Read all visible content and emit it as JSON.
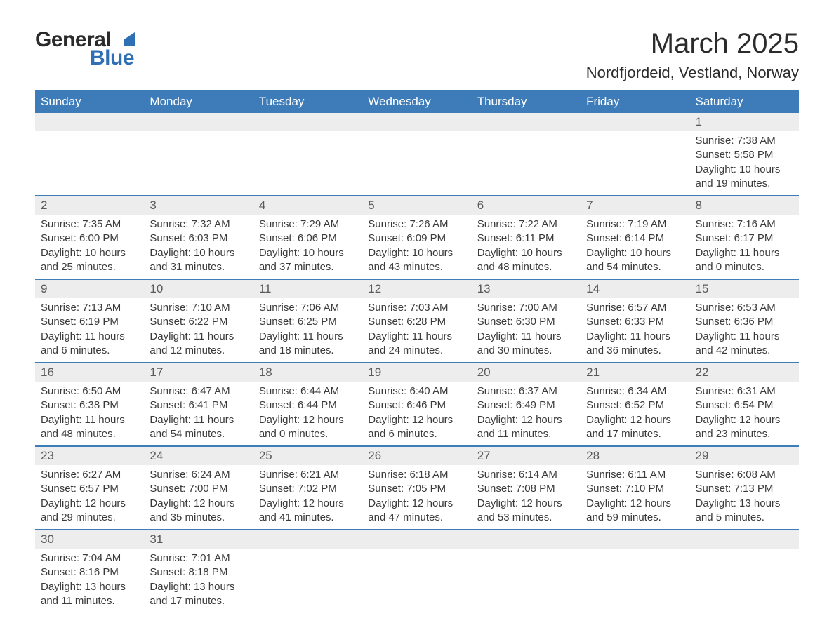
{
  "logo": {
    "text1": "General",
    "text2": "Blue",
    "shape_color": "#2f6fb3"
  },
  "title": "March 2025",
  "location": "Nordfjordeid, Vestland, Norway",
  "header_bg": "#3d7cb9",
  "header_text_color": "#ffffff",
  "daynum_bg": "#ededed",
  "row_divider_color": "#3d7cb9",
  "text_color": "#3a3a3a",
  "font_family": "Arial, Helvetica, sans-serif",
  "title_fontsize": 40,
  "location_fontsize": 22,
  "header_fontsize": 17,
  "daynum_fontsize": 17,
  "data_fontsize": 15,
  "weekdays": [
    "Sunday",
    "Monday",
    "Tuesday",
    "Wednesday",
    "Thursday",
    "Friday",
    "Saturday"
  ],
  "weeks": [
    [
      {
        "day": "",
        "lines": [
          "",
          "",
          "",
          ""
        ]
      },
      {
        "day": "",
        "lines": [
          "",
          "",
          "",
          ""
        ]
      },
      {
        "day": "",
        "lines": [
          "",
          "",
          "",
          ""
        ]
      },
      {
        "day": "",
        "lines": [
          "",
          "",
          "",
          ""
        ]
      },
      {
        "day": "",
        "lines": [
          "",
          "",
          "",
          ""
        ]
      },
      {
        "day": "",
        "lines": [
          "",
          "",
          "",
          ""
        ]
      },
      {
        "day": "1",
        "lines": [
          "Sunrise: 7:38 AM",
          "Sunset: 5:58 PM",
          "Daylight: 10 hours",
          "and 19 minutes."
        ]
      }
    ],
    [
      {
        "day": "2",
        "lines": [
          "Sunrise: 7:35 AM",
          "Sunset: 6:00 PM",
          "Daylight: 10 hours",
          "and 25 minutes."
        ]
      },
      {
        "day": "3",
        "lines": [
          "Sunrise: 7:32 AM",
          "Sunset: 6:03 PM",
          "Daylight: 10 hours",
          "and 31 minutes."
        ]
      },
      {
        "day": "4",
        "lines": [
          "Sunrise: 7:29 AM",
          "Sunset: 6:06 PM",
          "Daylight: 10 hours",
          "and 37 minutes."
        ]
      },
      {
        "day": "5",
        "lines": [
          "Sunrise: 7:26 AM",
          "Sunset: 6:09 PM",
          "Daylight: 10 hours",
          "and 43 minutes."
        ]
      },
      {
        "day": "6",
        "lines": [
          "Sunrise: 7:22 AM",
          "Sunset: 6:11 PM",
          "Daylight: 10 hours",
          "and 48 minutes."
        ]
      },
      {
        "day": "7",
        "lines": [
          "Sunrise: 7:19 AM",
          "Sunset: 6:14 PM",
          "Daylight: 10 hours",
          "and 54 minutes."
        ]
      },
      {
        "day": "8",
        "lines": [
          "Sunrise: 7:16 AM",
          "Sunset: 6:17 PM",
          "Daylight: 11 hours",
          "and 0 minutes."
        ]
      }
    ],
    [
      {
        "day": "9",
        "lines": [
          "Sunrise: 7:13 AM",
          "Sunset: 6:19 PM",
          "Daylight: 11 hours",
          "and 6 minutes."
        ]
      },
      {
        "day": "10",
        "lines": [
          "Sunrise: 7:10 AM",
          "Sunset: 6:22 PM",
          "Daylight: 11 hours",
          "and 12 minutes."
        ]
      },
      {
        "day": "11",
        "lines": [
          "Sunrise: 7:06 AM",
          "Sunset: 6:25 PM",
          "Daylight: 11 hours",
          "and 18 minutes."
        ]
      },
      {
        "day": "12",
        "lines": [
          "Sunrise: 7:03 AM",
          "Sunset: 6:28 PM",
          "Daylight: 11 hours",
          "and 24 minutes."
        ]
      },
      {
        "day": "13",
        "lines": [
          "Sunrise: 7:00 AM",
          "Sunset: 6:30 PM",
          "Daylight: 11 hours",
          "and 30 minutes."
        ]
      },
      {
        "day": "14",
        "lines": [
          "Sunrise: 6:57 AM",
          "Sunset: 6:33 PM",
          "Daylight: 11 hours",
          "and 36 minutes."
        ]
      },
      {
        "day": "15",
        "lines": [
          "Sunrise: 6:53 AM",
          "Sunset: 6:36 PM",
          "Daylight: 11 hours",
          "and 42 minutes."
        ]
      }
    ],
    [
      {
        "day": "16",
        "lines": [
          "Sunrise: 6:50 AM",
          "Sunset: 6:38 PM",
          "Daylight: 11 hours",
          "and 48 minutes."
        ]
      },
      {
        "day": "17",
        "lines": [
          "Sunrise: 6:47 AM",
          "Sunset: 6:41 PM",
          "Daylight: 11 hours",
          "and 54 minutes."
        ]
      },
      {
        "day": "18",
        "lines": [
          "Sunrise: 6:44 AM",
          "Sunset: 6:44 PM",
          "Daylight: 12 hours",
          "and 0 minutes."
        ]
      },
      {
        "day": "19",
        "lines": [
          "Sunrise: 6:40 AM",
          "Sunset: 6:46 PM",
          "Daylight: 12 hours",
          "and 6 minutes."
        ]
      },
      {
        "day": "20",
        "lines": [
          "Sunrise: 6:37 AM",
          "Sunset: 6:49 PM",
          "Daylight: 12 hours",
          "and 11 minutes."
        ]
      },
      {
        "day": "21",
        "lines": [
          "Sunrise: 6:34 AM",
          "Sunset: 6:52 PM",
          "Daylight: 12 hours",
          "and 17 minutes."
        ]
      },
      {
        "day": "22",
        "lines": [
          "Sunrise: 6:31 AM",
          "Sunset: 6:54 PM",
          "Daylight: 12 hours",
          "and 23 minutes."
        ]
      }
    ],
    [
      {
        "day": "23",
        "lines": [
          "Sunrise: 6:27 AM",
          "Sunset: 6:57 PM",
          "Daylight: 12 hours",
          "and 29 minutes."
        ]
      },
      {
        "day": "24",
        "lines": [
          "Sunrise: 6:24 AM",
          "Sunset: 7:00 PM",
          "Daylight: 12 hours",
          "and 35 minutes."
        ]
      },
      {
        "day": "25",
        "lines": [
          "Sunrise: 6:21 AM",
          "Sunset: 7:02 PM",
          "Daylight: 12 hours",
          "and 41 minutes."
        ]
      },
      {
        "day": "26",
        "lines": [
          "Sunrise: 6:18 AM",
          "Sunset: 7:05 PM",
          "Daylight: 12 hours",
          "and 47 minutes."
        ]
      },
      {
        "day": "27",
        "lines": [
          "Sunrise: 6:14 AM",
          "Sunset: 7:08 PM",
          "Daylight: 12 hours",
          "and 53 minutes."
        ]
      },
      {
        "day": "28",
        "lines": [
          "Sunrise: 6:11 AM",
          "Sunset: 7:10 PM",
          "Daylight: 12 hours",
          "and 59 minutes."
        ]
      },
      {
        "day": "29",
        "lines": [
          "Sunrise: 6:08 AM",
          "Sunset: 7:13 PM",
          "Daylight: 13 hours",
          "and 5 minutes."
        ]
      }
    ],
    [
      {
        "day": "30",
        "lines": [
          "Sunrise: 7:04 AM",
          "Sunset: 8:16 PM",
          "Daylight: 13 hours",
          "and 11 minutes."
        ]
      },
      {
        "day": "31",
        "lines": [
          "Sunrise: 7:01 AM",
          "Sunset: 8:18 PM",
          "Daylight: 13 hours",
          "and 17 minutes."
        ]
      },
      {
        "day": "",
        "lines": [
          "",
          "",
          "",
          ""
        ]
      },
      {
        "day": "",
        "lines": [
          "",
          "",
          "",
          ""
        ]
      },
      {
        "day": "",
        "lines": [
          "",
          "",
          "",
          ""
        ]
      },
      {
        "day": "",
        "lines": [
          "",
          "",
          "",
          ""
        ]
      },
      {
        "day": "",
        "lines": [
          "",
          "",
          "",
          ""
        ]
      }
    ]
  ]
}
